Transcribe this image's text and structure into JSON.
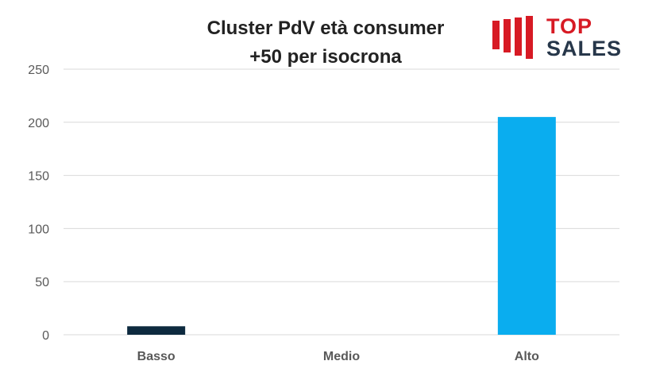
{
  "logo": {
    "line1": "TOP",
    "line2": "SALES"
  },
  "chart_data": {
    "type": "bar",
    "title_lines": [
      "Cluster PdV età consumer",
      "+50 per isocrona"
    ],
    "categories": [
      "Basso",
      "Medio",
      "Alto"
    ],
    "values": [
      8,
      0,
      205
    ],
    "bar_colors": [
      "#0d2a3f",
      "#0d2a3f",
      "#0aadef"
    ],
    "ylim": [
      0,
      250
    ],
    "yticks": [
      0,
      50,
      100,
      150,
      200,
      250
    ],
    "grid": true,
    "legend": false
  }
}
